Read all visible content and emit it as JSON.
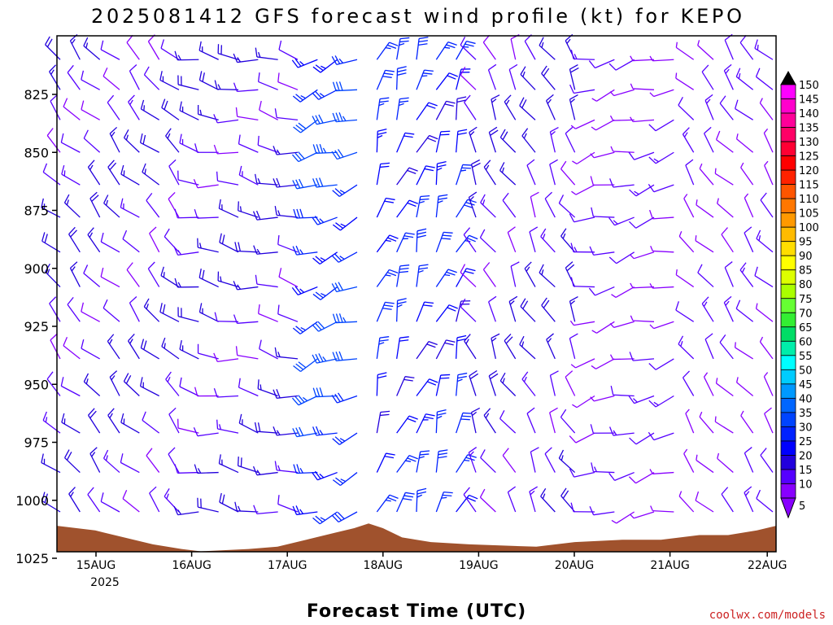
{
  "chart_data": {
    "type": "wind-barb profile",
    "title": "2025081412 GFS forecast wind profile (kt) for KEPO",
    "xlabel": "Forecast Time (UTC)",
    "ylabel": "",
    "credit": "coolwx.com/models",
    "x_ticks": [
      "15AUG",
      "16AUG",
      "17AUG",
      "18AUG",
      "19AUG",
      "20AUG",
      "21AUG",
      "22AUG"
    ],
    "x_year_label": "2025",
    "xlim_days": [
      "2025-08-14T12",
      "2025-08-22T00"
    ],
    "y_ticks": [
      825,
      850,
      875,
      900,
      925,
      950,
      975,
      1000,
      1025
    ],
    "ylim_hpa": [
      803,
      1029
    ],
    "y_scale": "pressure, inverted",
    "barb_levels_hpa": [
      810,
      823,
      836,
      850,
      864,
      878,
      893,
      908,
      923,
      939,
      955,
      971,
      988,
      1005,
      1022
    ],
    "colorbar": {
      "units": "kt",
      "labels": [
        150,
        145,
        140,
        135,
        130,
        125,
        120,
        115,
        110,
        105,
        100,
        95,
        90,
        85,
        80,
        75,
        70,
        65,
        60,
        55,
        50,
        45,
        40,
        35,
        30,
        25,
        20,
        15,
        10,
        5
      ],
      "colors": [
        "#ff00ff",
        "#ff00cc",
        "#ff0099",
        "#ff0066",
        "#ff0033",
        "#ff0000",
        "#ff2200",
        "#ff5500",
        "#ff7700",
        "#ff9900",
        "#ffbb00",
        "#ffdd00",
        "#ffff00",
        "#ddff00",
        "#aaff00",
        "#66ff33",
        "#33ee33",
        "#00dd66",
        "#00eeaa",
        "#00ffff",
        "#00ccff",
        "#0099ff",
        "#0066ff",
        "#0044ff",
        "#0022ff",
        "#0000ff",
        "#2200dd",
        "#5500ff",
        "#8800ff",
        "#8800ff"
      ],
      "top_arrow_color": "#000000",
      "bottom_arrow_color": "#8800ff"
    },
    "colors": {
      "terrain": "#a0522d",
      "barb_default": "#8800dd"
    },
    "surface_pressure_hpa_by_day": [
      [
        0.0,
        1011
      ],
      [
        0.4,
        1013
      ],
      [
        0.7,
        1016
      ],
      [
        1.0,
        1019
      ],
      [
        1.3,
        1021
      ],
      [
        1.5,
        1022
      ],
      [
        2.0,
        1021
      ],
      [
        2.3,
        1020
      ],
      [
        2.6,
        1017
      ],
      [
        2.9,
        1014
      ],
      [
        3.1,
        1012
      ],
      [
        3.25,
        1010
      ],
      [
        3.4,
        1012
      ],
      [
        3.6,
        1016
      ],
      [
        3.9,
        1018
      ],
      [
        4.3,
        1019
      ],
      [
        5.0,
        1020
      ],
      [
        5.4,
        1018
      ],
      [
        5.9,
        1017
      ],
      [
        6.3,
        1017
      ],
      [
        6.7,
        1015
      ],
      [
        7.0,
        1015
      ],
      [
        7.3,
        1013
      ],
      [
        7.5,
        1011
      ],
      [
        7.6,
        1009
      ],
      [
        7.7,
        1010
      ],
      [
        7.75,
        1010
      ]
    ],
    "wind_regimes_by_day": [
      {
        "day_range": [
          0.0,
          1.4
        ],
        "dir_deg": 315,
        "speed_kt": 15
      },
      {
        "day_range": [
          1.4,
          2.6
        ],
        "dir_deg": 280,
        "speed_kt": 15
      },
      {
        "day_range": [
          2.6,
          3.25
        ],
        "dir_deg": 250,
        "speed_kt": 30
      },
      {
        "day_range": [
          3.25,
          4.3
        ],
        "dir_deg": 20,
        "speed_kt": 25
      },
      {
        "day_range": [
          4.3,
          5.6
        ],
        "dir_deg": 330,
        "speed_kt": 15
      },
      {
        "day_range": [
          5.6,
          6.6
        ],
        "dir_deg": 255,
        "speed_kt": 10
      },
      {
        "day_range": [
          6.6,
          7.75
        ],
        "dir_deg": 320,
        "speed_kt": 10
      }
    ]
  }
}
